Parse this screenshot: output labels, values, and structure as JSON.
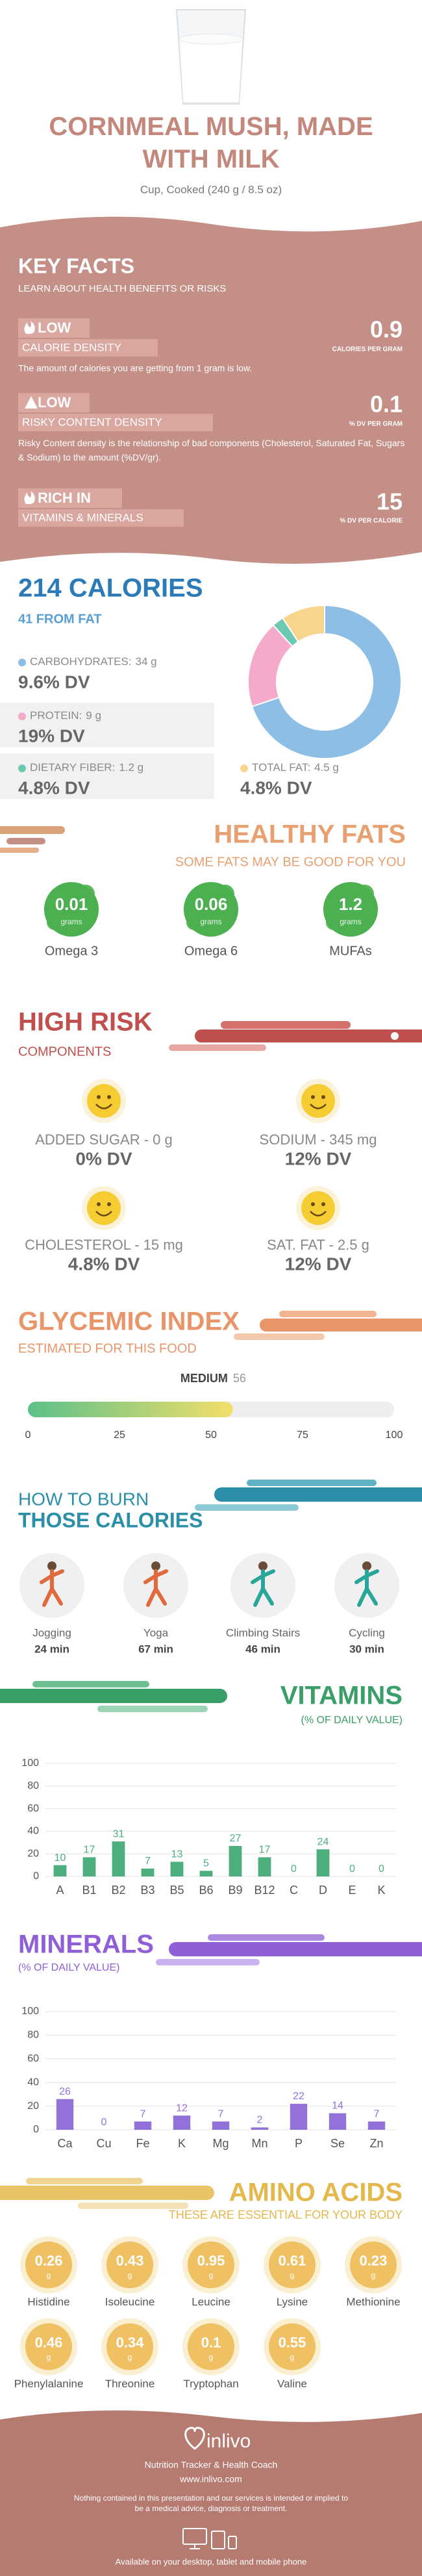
{
  "header": {
    "title": "CORNMEAL MUSH, MADE WITH MILK",
    "subtitle": "Cup, Cooked (240 g / 8.5 oz)"
  },
  "key_facts": {
    "title": "KEY FACTS",
    "subtitle": "LEARN ABOUT HEALTH BENEFITS OR RISKS",
    "items": [
      {
        "level": "LOW",
        "label": "CALORIE DENSITY",
        "value": 0.9,
        "unit": "CALORIES PER GRAM",
        "description": "The amount of calories you are getting from 1 gram is low."
      },
      {
        "level": "LOW",
        "label": "RISKY CONTENT DENSITY",
        "value": 0.1,
        "unit": "% DV PER GRAM",
        "description": "Risky Content density is the relationship of bad components (Cholesterol, Saturated Fat, Sugars & Sodium) to the amount (%DV/gr)."
      },
      {
        "level": "RICH IN",
        "label": "VITAMINS & MINERALS",
        "value": 15,
        "unit": "% DV PER CALORIE"
      }
    ]
  },
  "healthy_fats": {
    "title": "HEALTHY FATS",
    "subtitle": "SOME FATS MAY BE GOOD FOR YOU",
    "items": [
      {
        "value": 0.01,
        "unit": "grams",
        "name": "Omega 3"
      },
      {
        "value": 0.06,
        "unit": "grams",
        "name": "Omega 6"
      },
      {
        "value": 1.2,
        "unit": "grams",
        "name": "MUFAs"
      }
    ]
  },
  "high_risk": {
    "title": "HIGH RISK",
    "subtitle": "COMPONENTS",
    "items": [
      {
        "label": "ADDED SUGAR - 0 g",
        "dv": "0% DV"
      },
      {
        "label": "SODIUM - 345 mg",
        "dv": "12% DV"
      },
      {
        "label": "CHOLESTEROL - 15 mg",
        "dv": "4.8% DV"
      },
      {
        "label": "SAT. FAT - 2.5 g",
        "dv": "12% DV"
      }
    ]
  },
  "burn": {
    "title": "HOW TO BURN",
    "subtitle": "THOSE CALORIES",
    "items": [
      {
        "activity": "Jogging",
        "time": "24 min"
      },
      {
        "activity": "Yoga",
        "time": "67 min"
      },
      {
        "activity": "Climbing Stairs",
        "time": "46 min"
      },
      {
        "activity": "Cycling",
        "time": "30 min"
      }
    ]
  },
  "amino_acids": {
    "title": "AMINO ACIDS",
    "subtitle": "THESE ARE ESSENTIAL FOR YOUR BODY",
    "unit": "g",
    "items": [
      {
        "value": 0.26,
        "name": "Histidine"
      },
      {
        "value": 0.43,
        "name": "Isoleucine"
      },
      {
        "value": 0.95,
        "name": "Leucine"
      },
      {
        "value": 0.61,
        "name": "Lysine"
      },
      {
        "value": 0.23,
        "name": "Methionine"
      },
      {
        "value": 0.46,
        "name": "Phenylalanine"
      },
      {
        "value": 0.34,
        "name": "Threonine"
      },
      {
        "value": 0.1,
        "name": "Tryptophan"
      },
      {
        "value": 0.55,
        "name": "Valine"
      }
    ]
  },
  "footer": {
    "brand": "inlivo",
    "tagline": "Nutrition Tracker & Health Coach",
    "url": "www.inlivo.com",
    "disclaimer": "Nothing contained in this presentation and our services is intended or implied to be a medical advice, diagnosis or treatment.",
    "availability": "Available on your desktop, tablet and mobile phone"
  },
  "chart_data": [
    {
      "type": "pie",
      "title": "214 CALORIES",
      "subtitle": "41 FROM FAT",
      "categories": [
        "CARBOHYDRATES:",
        "PROTEIN:",
        "DIETARY FIBER:",
        "TOTAL FAT:"
      ],
      "values": [
        34,
        9,
        1.2,
        4.5
      ],
      "value_labels": [
        "34 g",
        "9 g",
        "1.2 g",
        "4.5 g"
      ],
      "dv_labels": [
        "9.6% DV",
        "19% DV",
        "4.8% DV",
        "4.8% DV"
      ],
      "colors": [
        "#8dbfe6",
        "#f5a9cb",
        "#6ccab3",
        "#f8d58c"
      ]
    },
    {
      "type": "gauge",
      "title": "GLYCEMIC INDEX",
      "subtitle": "ESTIMATED FOR THIS FOOD",
      "label": "MEDIUM",
      "value": 56,
      "xlim": [
        0,
        100
      ],
      "xticks": [
        0,
        25,
        50,
        75,
        100
      ]
    },
    {
      "type": "bar",
      "title": "VITAMINS",
      "subtitle": "(% OF DAILY VALUE)",
      "categories": [
        "A",
        "B1",
        "B2",
        "B3",
        "B5",
        "B6",
        "B9",
        "B12",
        "C",
        "D",
        "E",
        "K"
      ],
      "values": [
        10,
        17,
        31,
        7,
        13,
        5,
        27,
        17,
        0,
        24,
        0,
        0
      ],
      "color": "#4caf7d",
      "ylim": [
        0,
        100
      ],
      "yticks": [
        0,
        20,
        40,
        60,
        80,
        100
      ],
      "grid": true
    },
    {
      "type": "bar",
      "title": "MINERALS",
      "subtitle": "(% OF DAILY VALUE)",
      "categories": [
        "Ca",
        "Cu",
        "Fe",
        "K",
        "Mg",
        "Mn",
        "P",
        "Se",
        "Zn"
      ],
      "values": [
        26,
        0,
        7,
        12,
        7,
        2,
        22,
        14,
        7
      ],
      "color": "#9271d9",
      "ylim": [
        0,
        100
      ],
      "yticks": [
        0,
        20,
        40,
        60,
        80,
        100
      ],
      "grid": true
    }
  ]
}
